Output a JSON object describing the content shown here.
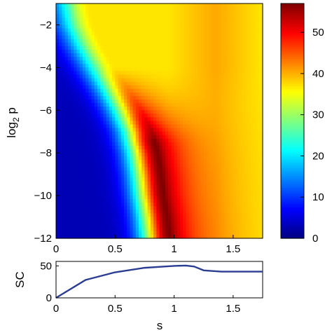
{
  "chart_data": [
    {
      "type": "heatmap",
      "xlim": [
        0,
        1.75
      ],
      "ylim": [
        -12,
        -1
      ],
      "x_ticks": [
        "0",
        "0.5",
        "1",
        "1.5"
      ],
      "y_ticks": [
        "-2",
        "-4",
        "-6",
        "-8",
        "-10",
        "-12"
      ],
      "ylabel": "log",
      "ylabel_sub": "2",
      "ylabel_tail": " p",
      "colorbar": {
        "clim": [
          0,
          57
        ],
        "ticks": [
          "0",
          "10",
          "20",
          "30",
          "40",
          "50"
        ],
        "colormap": "jet"
      },
      "ridge_s_by_log2p": [
        {
          "log2p": -12,
          "s": 0.97
        },
        {
          "log2p": -11,
          "s": 0.95
        },
        {
          "log2p": -10,
          "s": 0.92
        },
        {
          "log2p": -9,
          "s": 0.9
        },
        {
          "log2p": -8,
          "s": 0.87
        },
        {
          "log2p": -7,
          "s": 0.82
        },
        {
          "log2p": -6,
          "s": 0.73
        },
        {
          "log2p": -5,
          "s": 0.62
        },
        {
          "log2p": -4,
          "s": 0.5
        },
        {
          "log2p": -3,
          "s": 0.4
        },
        {
          "log2p": -2,
          "s": 0.32
        },
        {
          "log2p": -1,
          "s": 0.28
        }
      ]
    },
    {
      "type": "line",
      "xlabel": "s",
      "ylabel": "SC",
      "xlim": [
        0,
        1.75
      ],
      "ylim": [
        0,
        57
      ],
      "x_ticks": [
        "0",
        "0.5",
        "1",
        "1.5"
      ],
      "y_ticks": [
        "0",
        "50"
      ],
      "color": "#2b3d92",
      "x": [
        0,
        0.25,
        0.5,
        0.75,
        1.0,
        1.1,
        1.17,
        1.25,
        1.4,
        1.55,
        1.75
      ],
      "y": [
        0,
        28,
        40,
        47,
        50,
        50.5,
        49,
        43,
        41,
        41,
        41
      ]
    }
  ]
}
